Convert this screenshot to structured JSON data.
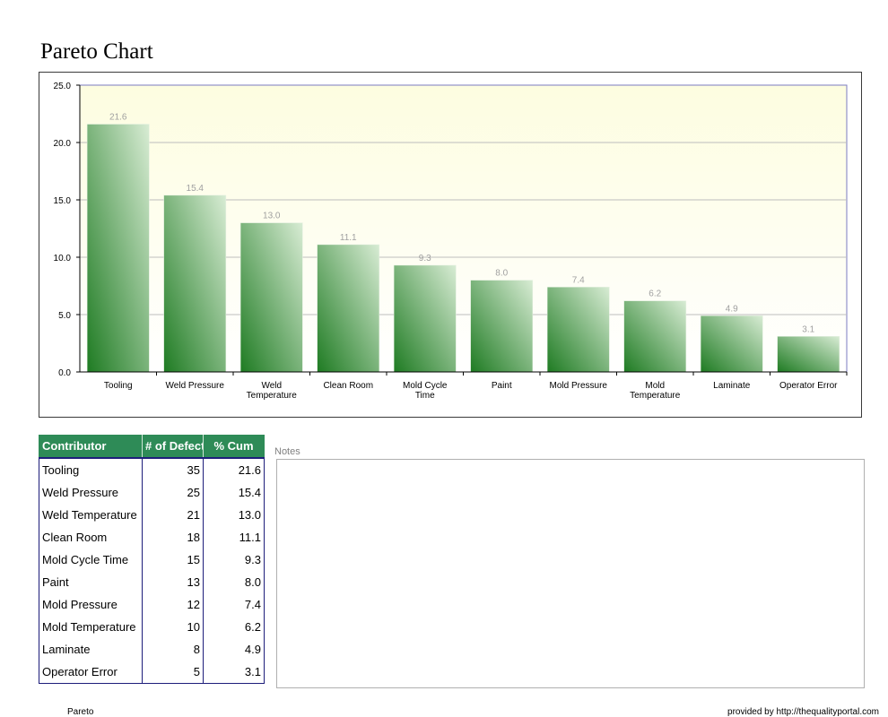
{
  "page": {
    "title": "Pareto Chart",
    "notes_label": "Notes",
    "footer_left": "Pareto",
    "footer_right": "provided by http://thequalityportal.com"
  },
  "table": {
    "headers": [
      "Contributor",
      "# of Defect",
      "% Cum"
    ],
    "rows": [
      {
        "contributor": "Tooling",
        "defects": "35",
        "pct": "21.6"
      },
      {
        "contributor": "Weld Pressure",
        "defects": "25",
        "pct": "15.4"
      },
      {
        "contributor": "Weld Temperature",
        "defects": "21",
        "pct": "13.0"
      },
      {
        "contributor": "Clean Room",
        "defects": "18",
        "pct": "11.1"
      },
      {
        "contributor": "Mold Cycle Time",
        "defects": "15",
        "pct": "9.3"
      },
      {
        "contributor": "Paint",
        "defects": "13",
        "pct": "8.0"
      },
      {
        "contributor": "Mold Pressure",
        "defects": "12",
        "pct": "7.4"
      },
      {
        "contributor": "Mold Temperature",
        "defects": "10",
        "pct": "6.2"
      },
      {
        "contributor": "Laminate",
        "defects": "8",
        "pct": "4.9"
      },
      {
        "contributor": "Operator Error",
        "defects": "5",
        "pct": "3.1"
      }
    ]
  },
  "chart_data": {
    "type": "bar",
    "title": "",
    "xlabel": "",
    "ylabel": "",
    "categories": [
      [
        "Tooling"
      ],
      [
        "Weld Pressure"
      ],
      [
        "Weld",
        "Temperature"
      ],
      [
        "Clean Room"
      ],
      [
        "Mold Cycle",
        "Time"
      ],
      [
        "Paint"
      ],
      [
        "Mold Pressure"
      ],
      [
        "Mold",
        "Temperature"
      ],
      [
        "Laminate"
      ],
      [
        "Operator Error"
      ]
    ],
    "values": [
      21.6,
      15.4,
      13.0,
      11.1,
      9.3,
      8.0,
      7.4,
      6.2,
      4.9,
      3.1
    ],
    "value_labels": [
      "21.6",
      "15.4",
      "13.0",
      "11.1",
      "9.3",
      "8.0",
      "7.4",
      "6.2",
      "4.9",
      "3.1"
    ],
    "ylim": [
      0,
      25
    ],
    "yticks": [
      "0.0",
      "5.0",
      "10.0",
      "15.0",
      "20.0",
      "25.0"
    ],
    "grid": true,
    "legend": "none",
    "colors": {
      "bar_dark": "#1e7b22",
      "bar_light": "#d8ecd4",
      "plot_bg_top": "#fdfde0",
      "plot_bg_bottom": "#ffffff",
      "plot_border": "#7b7bc0",
      "gridline": "#bdbdbd",
      "value_label": "#a0a0a0"
    }
  }
}
